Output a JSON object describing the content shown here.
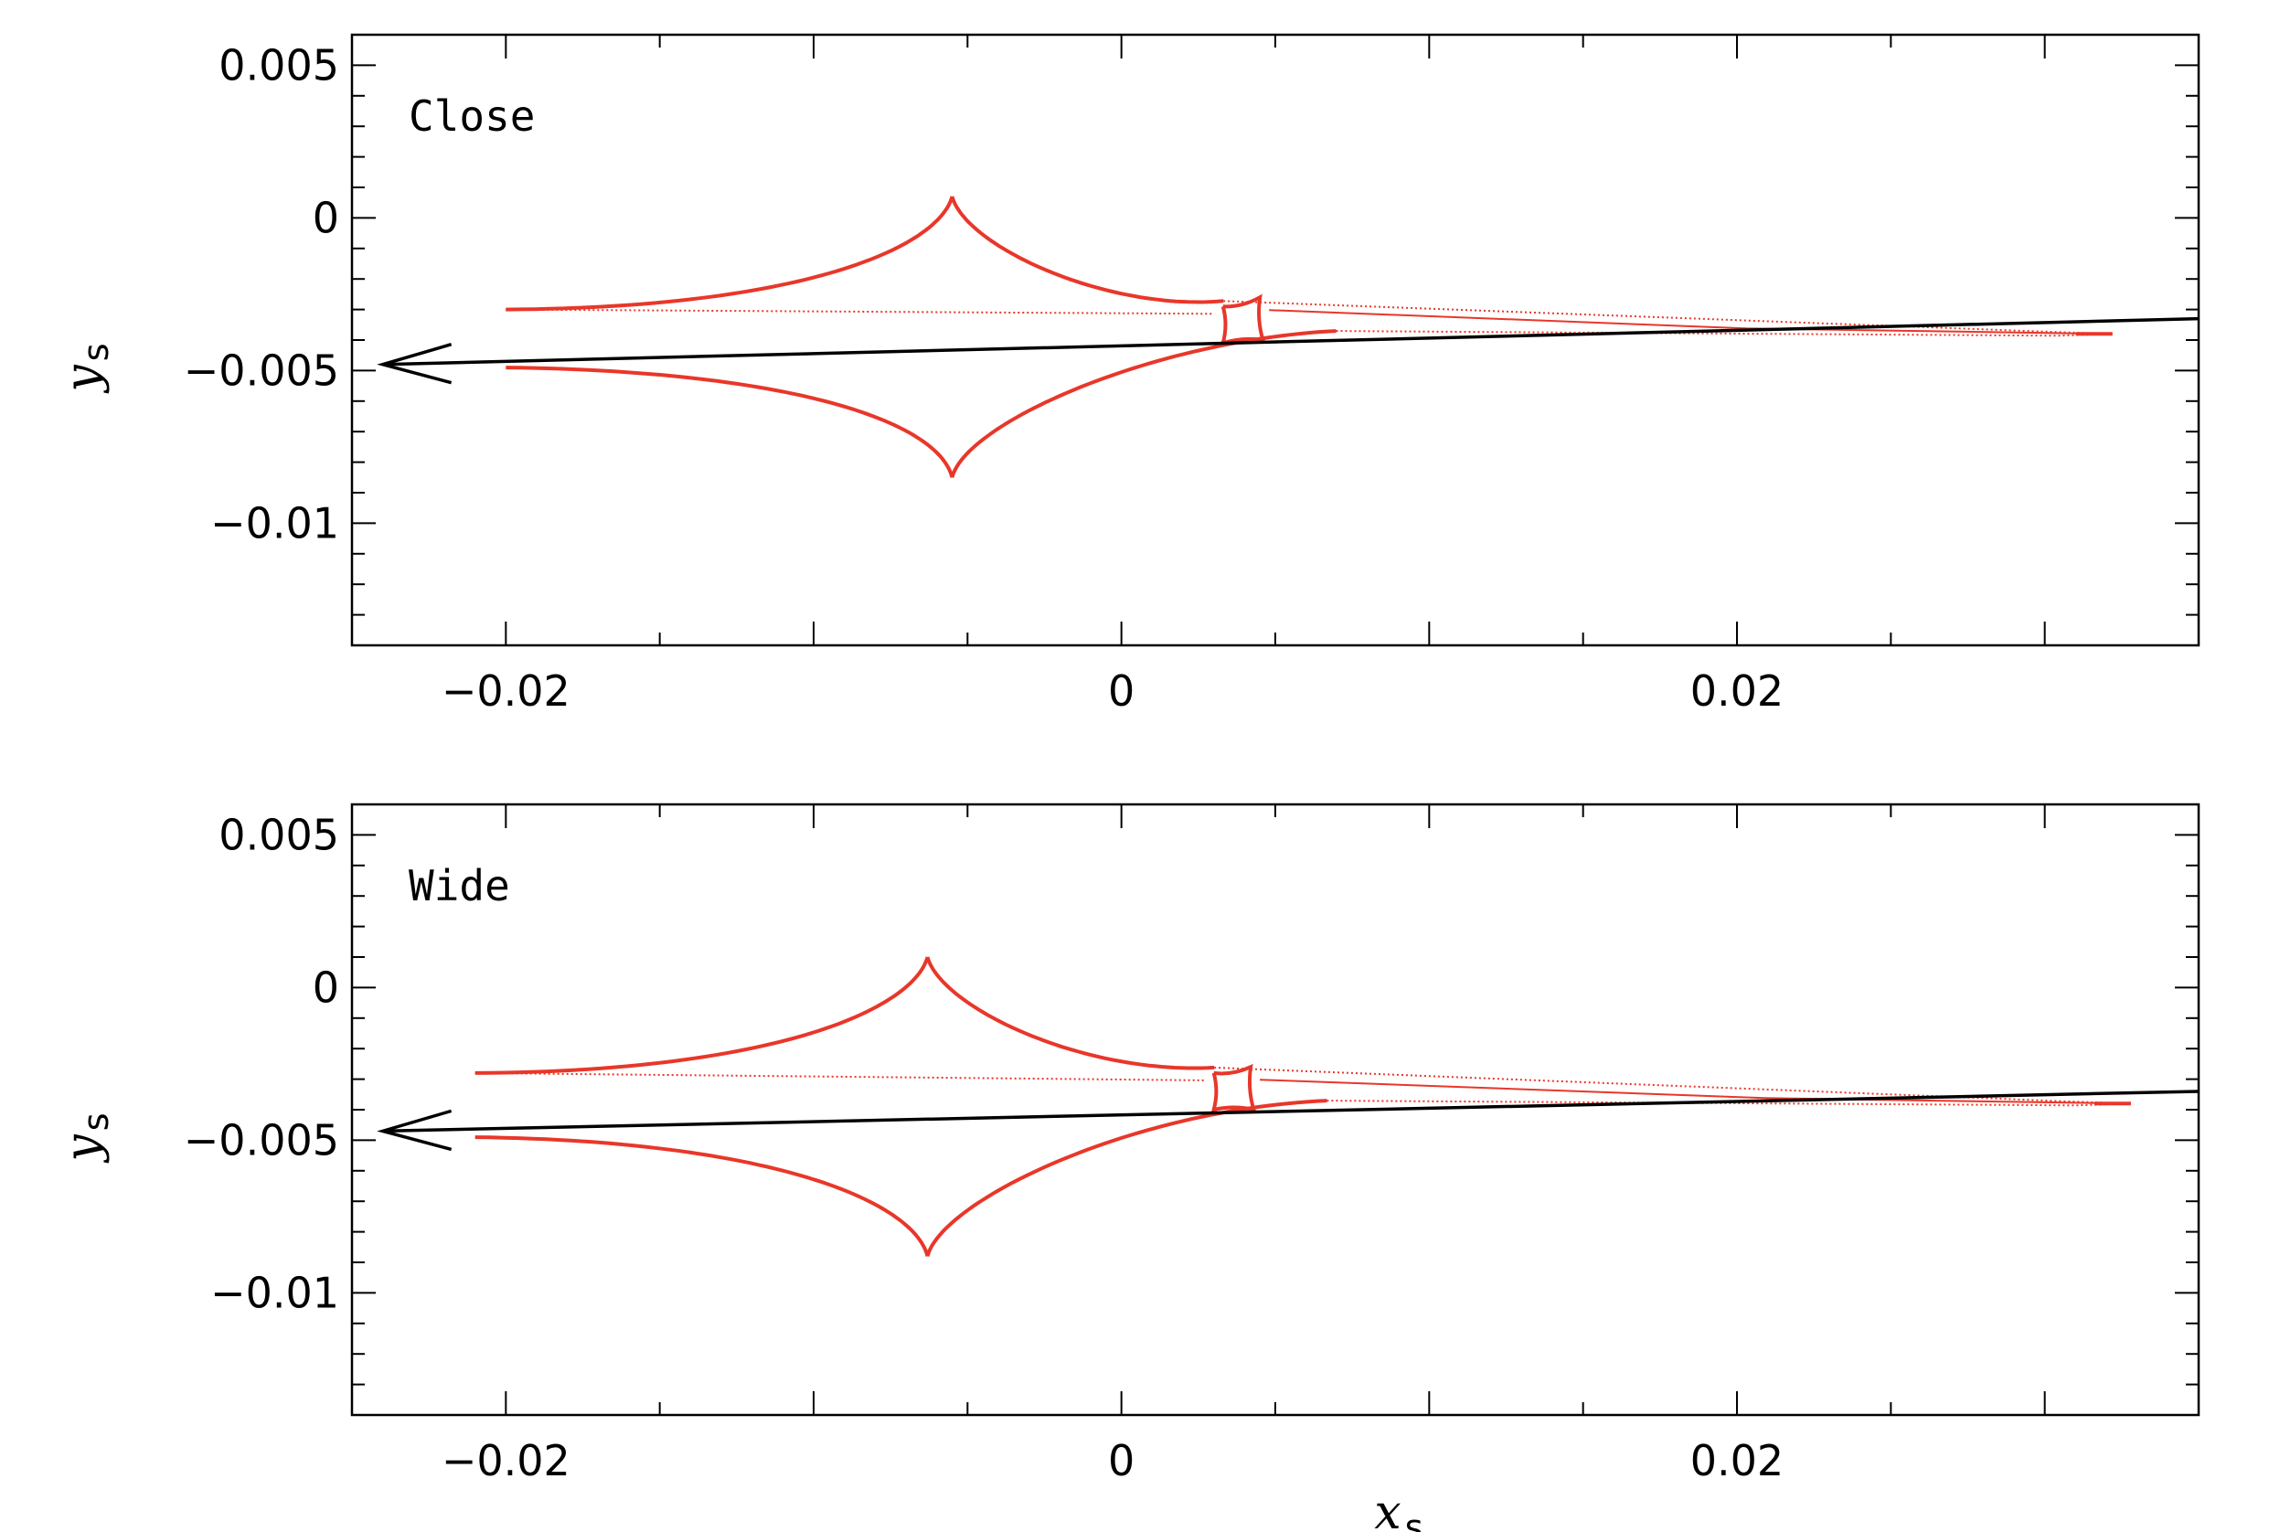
{
  "chart_data": [
    {
      "type": "line",
      "panel_label": "Close",
      "xlabel": "x",
      "xlabel_sub": "s",
      "ylabel": "y",
      "ylabel_sub": "s",
      "xlim": [
        -0.025,
        0.035
      ],
      "ylim": [
        -0.014,
        0.006
      ],
      "xticks": [
        -0.02,
        0,
        0.02
      ],
      "xtick_labels": [
        "−0.02",
        "0",
        "0.02"
      ],
      "yticks": [
        0.005,
        0,
        -0.005,
        -0.01
      ],
      "ytick_labels": [
        "0.005",
        "0",
        "−0.005",
        "−0.01"
      ],
      "central_caustic": {
        "color": "#e8372a",
        "left_tip": [
          -0.02,
          -0.003
        ],
        "top_cusp": [
          -0.0055,
          0.0007
        ],
        "bottom_cusp": [
          -0.0055,
          -0.0085
        ],
        "left_lower_tip": [
          -0.02,
          -0.0049
        ],
        "right_tip": [
          0.0322,
          -0.0038
        ]
      },
      "small_caustic": {
        "color": "#e8372a",
        "corners": [
          [
            0.0033,
            -0.0029
          ],
          [
            0.0045,
            -0.0026
          ],
          [
            0.0046,
            -0.004
          ],
          [
            0.0033,
            -0.0041
          ]
        ]
      },
      "trajectory": {
        "color": "#000000",
        "points": [
          [
            -0.024,
            -0.0048
          ],
          [
            0.035,
            -0.0033
          ]
        ],
        "direction": "left"
      }
    },
    {
      "type": "line",
      "panel_label": "Wide",
      "xlabel": "x",
      "xlabel_sub": "s",
      "ylabel": "y",
      "ylabel_sub": "s",
      "xlim": [
        -0.025,
        0.035
      ],
      "ylim": [
        -0.014,
        0.006
      ],
      "xticks": [
        -0.02,
        0,
        0.02
      ],
      "xtick_labels": [
        "−0.02",
        "0",
        "0.02"
      ],
      "yticks": [
        0.005,
        0,
        -0.005,
        -0.01
      ],
      "ytick_labels": [
        "0.005",
        "0",
        "−0.005",
        "−0.01"
      ],
      "central_caustic": {
        "color": "#e8372a",
        "left_tip": [
          -0.021,
          -0.0028
        ],
        "top_cusp": [
          -0.0063,
          0.001
        ],
        "bottom_cusp": [
          -0.0063,
          -0.0088
        ],
        "left_lower_tip": [
          -0.021,
          -0.0049
        ],
        "right_tip": [
          0.0328,
          -0.0038
        ]
      },
      "small_caustic": {
        "color": "#e8372a",
        "corners": [
          [
            0.003,
            -0.0028
          ],
          [
            0.0042,
            -0.0026
          ],
          [
            0.0043,
            -0.004
          ],
          [
            0.003,
            -0.004
          ]
        ]
      },
      "trajectory": {
        "color": "#000000",
        "points": [
          [
            -0.024,
            -0.0047
          ],
          [
            0.035,
            -0.0034
          ]
        ],
        "direction": "left"
      }
    }
  ]
}
